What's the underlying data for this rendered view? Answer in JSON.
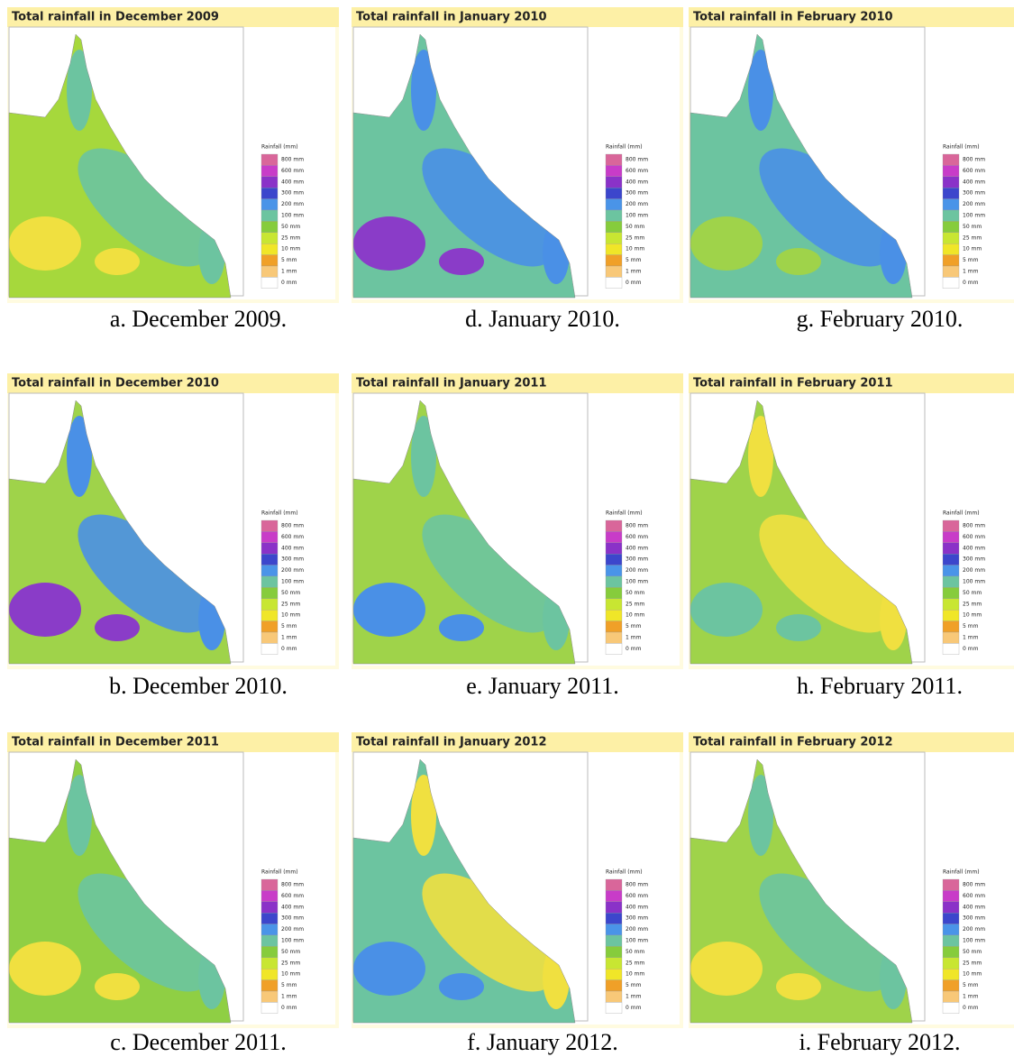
{
  "panels": [
    {
      "title": "Total rainfall in December 2009",
      "caption": "a. December 2009."
    },
    {
      "title": "Total rainfall in December 2010",
      "caption": "b. December 2010."
    },
    {
      "title": "Total rainfall in December 2011",
      "caption": "c. December 2011."
    },
    {
      "title": "Total rainfall in January 2010",
      "caption": "d. January 2010."
    },
    {
      "title": "Total rainfall in January 2011",
      "caption": "e. January 2011."
    },
    {
      "title": "Total rainfall in January 2012",
      "caption": "f. January 2012."
    },
    {
      "title": "Total rainfall in February 2010",
      "caption": "g. February 2010."
    },
    {
      "title": "Total rainfall in February 2011",
      "caption": "h. February 2011."
    },
    {
      "title": "Total rainfall in February 2012",
      "caption": "i. February 2012."
    }
  ],
  "legend": {
    "title": "Rainfall (mm)",
    "levels": [
      "800 mm",
      "600 mm",
      "400 mm",
      "300 mm",
      "200 mm",
      "100 mm",
      "50 mm",
      "25 mm",
      "10 mm",
      "5 mm",
      "1 mm",
      "0 mm"
    ]
  }
}
